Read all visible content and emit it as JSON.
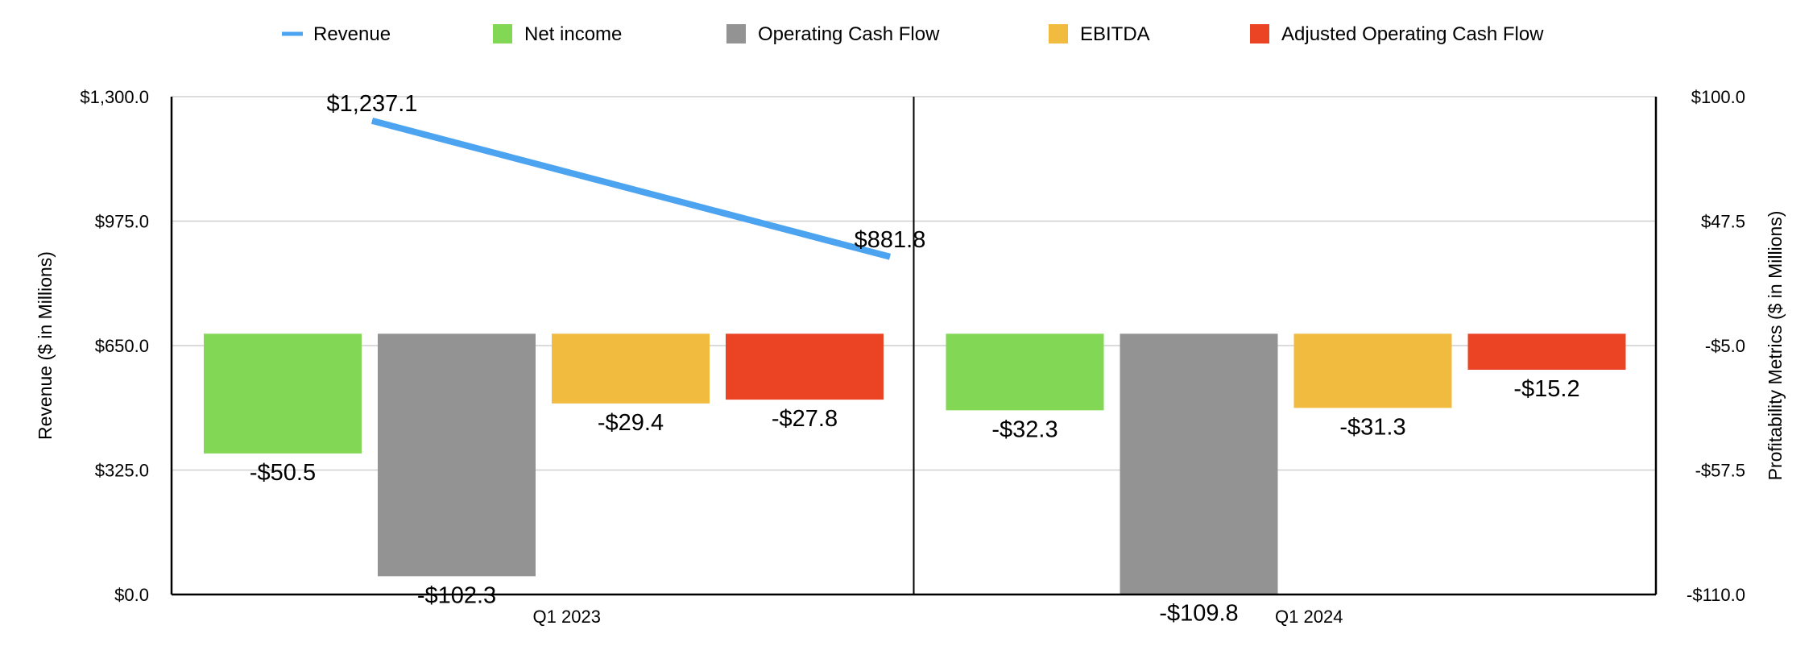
{
  "chart_data": {
    "type": "bar",
    "categories": [
      "Q1 2023",
      "Q1 2024"
    ],
    "line_series": {
      "name": "Revenue",
      "axis": "left",
      "values": [
        1237.1,
        881.8
      ],
      "labels": [
        "$1,237.1",
        "$881.8"
      ],
      "color": "#4ca3f0"
    },
    "series": [
      {
        "name": "Net income",
        "axis": "right",
        "values": [
          -50.5,
          -32.3
        ],
        "labels": [
          "-$50.5",
          "-$32.3"
        ],
        "color": "#82d854"
      },
      {
        "name": "Operating Cash Flow",
        "axis": "right",
        "values": [
          -102.3,
          -109.8
        ],
        "labels": [
          "-$102.3",
          "-$109.8"
        ],
        "color": "#939393"
      },
      {
        "name": "EBITDA",
        "axis": "right",
        "values": [
          -29.4,
          -31.3
        ],
        "labels": [
          "-$29.4",
          "-$31.3"
        ],
        "color": "#f0bb3e"
      },
      {
        "name": "Adjusted Operating Cash Flow",
        "axis": "right",
        "values": [
          -27.8,
          -15.2
        ],
        "labels": [
          "-$27.8",
          "-$15.2"
        ],
        "color": "#ea4425"
      }
    ],
    "left_axis": {
      "label": "Revenue ($ in Millions)",
      "range": [
        0,
        1300
      ],
      "ticks": [
        0,
        325,
        650,
        975,
        1300
      ],
      "tick_labels": [
        "$0.0",
        "$325.0",
        "$650.0",
        "$975.0",
        "$1,300.0"
      ]
    },
    "right_axis": {
      "label": "Profitability Metrics ($ in Millions)",
      "range": [
        -110,
        100
      ],
      "ticks": [
        -110,
        -57.5,
        -5,
        47.5,
        100
      ],
      "tick_labels": [
        "-$110.0",
        "-$57.5",
        "-$5.0",
        "$47.5",
        "$100.0"
      ]
    },
    "grid": true,
    "legend_position": "top"
  }
}
